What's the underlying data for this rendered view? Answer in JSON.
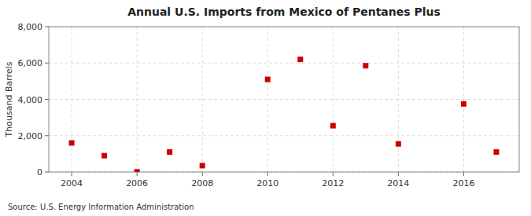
{
  "chart_data": {
    "type": "scatter",
    "title": "Annual U.S. Imports from Mexico of Pentanes Plus",
    "y_label": "Thousand Barrels",
    "source": "Source: U.S. Energy Information Administration",
    "x": [
      2004,
      2005,
      2006,
      2007,
      2008,
      2010,
      2011,
      2012,
      2013,
      2014,
      2016,
      2017
    ],
    "values": [
      1600,
      900,
      10,
      1100,
      350,
      5100,
      6200,
      2550,
      5850,
      1550,
      3750,
      1100
    ],
    "color": "#cc0000",
    "marker": "square",
    "xlim": [
      2003.3,
      2017.7
    ],
    "ylim": [
      0,
      8000
    ],
    "xticks": [
      2004,
      2006,
      2008,
      2010,
      2012,
      2014,
      2016
    ],
    "yticks": [
      0,
      {
        "value": 2000,
        "label": "2,000"
      },
      {
        "value": 4000,
        "label": "4,000"
      },
      {
        "value": 6000,
        "label": "6,000"
      },
      {
        "value": 8000,
        "label": "8,000"
      }
    ],
    "grid": true
  }
}
